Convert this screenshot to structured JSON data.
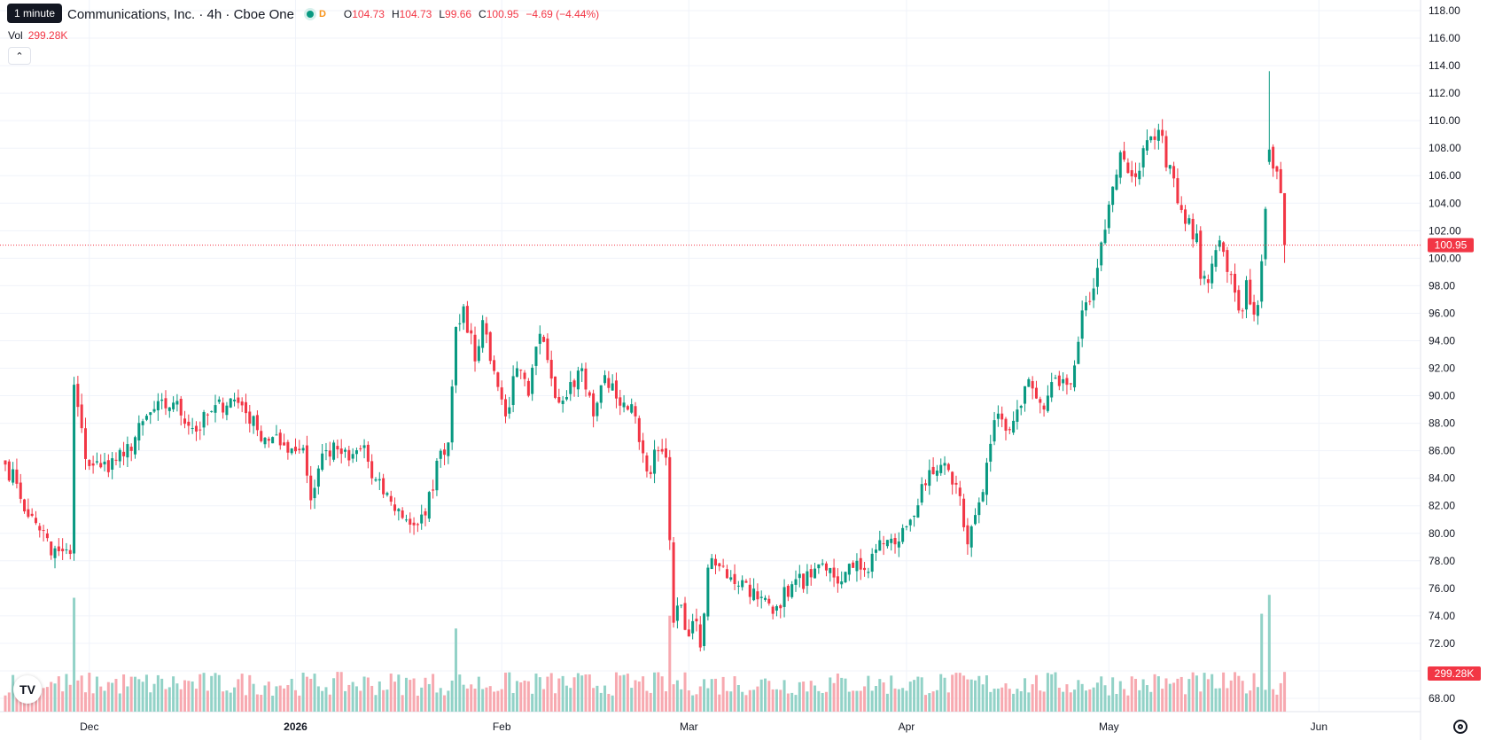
{
  "tooltip": "1 minute",
  "symbol": "Communications, Inc. · 4h · Cboe One",
  "badge": "D",
  "ohlc": {
    "o_label": "O",
    "o": "104.73",
    "h_label": "H",
    "h": "104.73",
    "l_label": "L",
    "l": "99.66",
    "c_label": "C",
    "c": "100.95",
    "change": "−4.69 (−4.44%)"
  },
  "volume": {
    "label": "Vol",
    "value": "299.28K"
  },
  "collapse_icon": "chevron-up-icon",
  "logo_text": "TV",
  "colors": {
    "up": "#089981",
    "down": "#f23645",
    "up_vol": "#92d2c7",
    "down_vol": "#f7a9b0",
    "grid": "#f0f3fa"
  },
  "chart_data": {
    "type": "candlestick",
    "interval": "4h",
    "y_axis_ticks": [
      "68.00",
      "70.00",
      "72.00",
      "74.00",
      "76.00",
      "78.00",
      "80.00",
      "82.00",
      "84.00",
      "86.00",
      "88.00",
      "90.00",
      "92.00",
      "94.00",
      "96.00",
      "98.00",
      "100.00",
      "102.00",
      "104.00",
      "106.00",
      "108.00",
      "110.00",
      "112.00",
      "114.00",
      "116.00",
      "118.00"
    ],
    "y_range": [
      66.5,
      119
    ],
    "x_axis_labels": [
      {
        "label": "Dec",
        "bold": false
      },
      {
        "label": "2026",
        "bold": true
      },
      {
        "label": "Feb",
        "bold": false
      },
      {
        "label": "Mar",
        "bold": false
      },
      {
        "label": "Apr",
        "bold": false
      },
      {
        "label": "May",
        "bold": false
      },
      {
        "label": "Jun",
        "bold": false
      }
    ],
    "x_label_slots": [
      22,
      76,
      130,
      179,
      236,
      289,
      344
    ],
    "slot_count": 353,
    "last_price": {
      "value": 100.95,
      "label": "100.95"
    },
    "last_volume": {
      "value": 299.28,
      "label": "299.28K"
    },
    "volume_max_k": 880,
    "anchors": [
      [
        0,
        85.0
      ],
      [
        3,
        83.6
      ],
      [
        6,
        81.2
      ],
      [
        10,
        80.2
      ],
      [
        12,
        78.4
      ],
      [
        14,
        78.7
      ],
      [
        17,
        78.5
      ],
      [
        18,
        90.8
      ],
      [
        21,
        85.4
      ],
      [
        25,
        84.8
      ],
      [
        31,
        85.6
      ],
      [
        38,
        88.8
      ],
      [
        44,
        89.5
      ],
      [
        50,
        87.4
      ],
      [
        53,
        88.6
      ],
      [
        59,
        89.8
      ],
      [
        62,
        89.3
      ],
      [
        66,
        87.5
      ],
      [
        72,
        86.4
      ],
      [
        78,
        86.2
      ],
      [
        80,
        82.4
      ],
      [
        83,
        85.8
      ],
      [
        87,
        86.1
      ],
      [
        90,
        85.3
      ],
      [
        94,
        86.4
      ],
      [
        96,
        84.0
      ],
      [
        101,
        82.3
      ],
      [
        105,
        81.0
      ],
      [
        108,
        80.6
      ],
      [
        110,
        81.3
      ],
      [
        114,
        86.0
      ],
      [
        116,
        86.6
      ],
      [
        118,
        95.0
      ],
      [
        120,
        96.5
      ],
      [
        123,
        92.5
      ],
      [
        125,
        95.5
      ],
      [
        128,
        91.8
      ],
      [
        131,
        88.5
      ],
      [
        134,
        92.0
      ],
      [
        137,
        90.0
      ],
      [
        140,
        94.5
      ],
      [
        142,
        92.6
      ],
      [
        145,
        89.5
      ],
      [
        148,
        91.0
      ],
      [
        151,
        92.0
      ],
      [
        154,
        88.5
      ],
      [
        157,
        91.5
      ],
      [
        160,
        89.8
      ],
      [
        162,
        89.5
      ],
      [
        165,
        88.5
      ],
      [
        168,
        84.5
      ],
      [
        171,
        86.0
      ],
      [
        173,
        85.5
      ],
      [
        174,
        79.5
      ],
      [
        175,
        73.5
      ],
      [
        177,
        74.8
      ],
      [
        179,
        72.5
      ],
      [
        181,
        73.6
      ],
      [
        182,
        71.7
      ],
      [
        184,
        77.5
      ],
      [
        187,
        77.6
      ],
      [
        190,
        76.8
      ],
      [
        194,
        76.4
      ],
      [
        197,
        75.2
      ],
      [
        202,
        74.7
      ],
      [
        206,
        76.3
      ],
      [
        211,
        76.8
      ],
      [
        215,
        77.3
      ],
      [
        219,
        76.5
      ],
      [
        223,
        78.0
      ],
      [
        226,
        77.2
      ],
      [
        229,
        79.5
      ],
      [
        233,
        79.2
      ],
      [
        236,
        80.5
      ],
      [
        241,
        83.5
      ],
      [
        243,
        84.3
      ],
      [
        247,
        84.6
      ],
      [
        250,
        82.7
      ],
      [
        252,
        79.2
      ],
      [
        253,
        80.5
      ],
      [
        256,
        83.0
      ],
      [
        258,
        86.5
      ],
      [
        260,
        88.7
      ],
      [
        263,
        87.5
      ],
      [
        265,
        89.0
      ],
      [
        268,
        91.2
      ],
      [
        270,
        89.8
      ],
      [
        272,
        89.0
      ],
      [
        274,
        91.0
      ],
      [
        278,
        90.8
      ],
      [
        280,
        92.2
      ],
      [
        282,
        96.2
      ],
      [
        285,
        97.8
      ],
      [
        286,
        99.3
      ],
      [
        289,
        103.9
      ],
      [
        290,
        105.2
      ],
      [
        292,
        107.7
      ],
      [
        294,
        106.2
      ],
      [
        296,
        105.9
      ],
      [
        298,
        108.0
      ],
      [
        301,
        108.6
      ],
      [
        303,
        108.9
      ],
      [
        304,
        106.6
      ],
      [
        306,
        105.8
      ],
      [
        307,
        104.0
      ],
      [
        309,
        102.5
      ],
      [
        312,
        101.8
      ],
      [
        313,
        98.5
      ],
      [
        315,
        98.2
      ],
      [
        316,
        99.6
      ],
      [
        318,
        101.3
      ],
      [
        320,
        99.0
      ],
      [
        322,
        97.5
      ],
      [
        324,
        96.2
      ],
      [
        325,
        98.4
      ],
      [
        327,
        95.9
      ],
      [
        328,
        96.6
      ],
      [
        331,
        107.9
      ],
      [
        333,
        106.3
      ],
      [
        334,
        104.73
      ],
      [
        335,
        100.95
      ]
    ]
  }
}
